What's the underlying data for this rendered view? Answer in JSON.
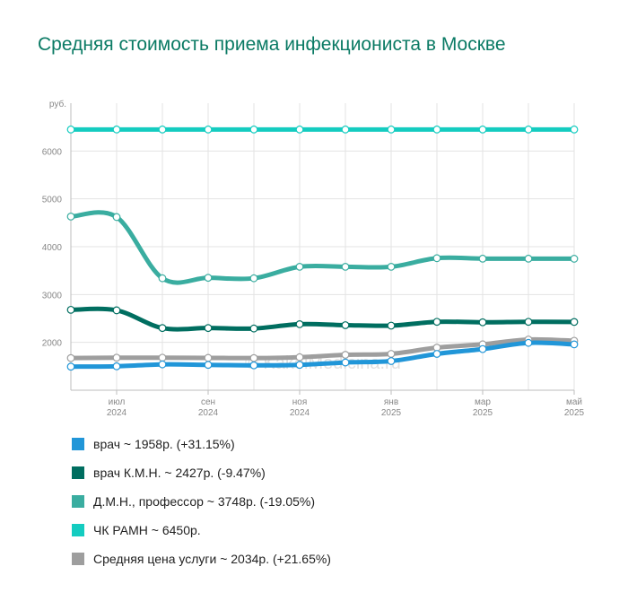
{
  "title": "Средняя стоимость приема инфекциониста в Москве",
  "watermark": "© KakoiMedicina.ru",
  "chart_data": {
    "type": "line",
    "y_unit": "руб.",
    "ylim": [
      1000,
      7000
    ],
    "y_ticks": [
      "2000",
      "3000",
      "4000",
      "5000",
      "6000"
    ],
    "x": [
      "2024-06",
      "2024-07",
      "2024-08",
      "2024-09",
      "2024-10",
      "2024-11",
      "2024-12",
      "2025-01",
      "2025-02",
      "2025-03",
      "2025-04",
      "2025-05"
    ],
    "x_ticks": [
      {
        "month": "июл",
        "year": "2024",
        "x": "2024-07"
      },
      {
        "month": "сен",
        "year": "2024",
        "x": "2024-09"
      },
      {
        "month": "ноя",
        "year": "2024",
        "x": "2024-11"
      },
      {
        "month": "янв",
        "year": "2025",
        "x": "2025-01"
      },
      {
        "month": "мар",
        "year": "2025",
        "x": "2025-03"
      },
      {
        "month": "май",
        "year": "2025",
        "x": "2025-05"
      }
    ],
    "grid": true,
    "legend_position": "bottom",
    "series": [
      {
        "name": "Средняя цена услуги",
        "color": "#9e9e9e",
        "legend": "Средняя цена услуги ~ 2034р. (+21.65%)",
        "values": [
          1672,
          1680,
          1680,
          1676,
          1672,
          1690,
          1740,
          1760,
          1890,
          1960,
          2060,
          2034
        ]
      },
      {
        "name": "врач",
        "color": "#2196d8",
        "legend": "врач ~ 1958р. (+31.15%)",
        "values": [
          1493,
          1500,
          1540,
          1530,
          1520,
          1530,
          1580,
          1610,
          1760,
          1860,
          1990,
          1958
        ]
      },
      {
        "name": "врач К.М.Н.",
        "color": "#006e60",
        "legend": "врач К.М.Н. ~ 2427р. (-9.47%)",
        "values": [
          2681,
          2670,
          2300,
          2300,
          2290,
          2380,
          2360,
          2350,
          2430,
          2420,
          2430,
          2427
        ]
      },
      {
        "name": "Д.М.Н., профессор",
        "color": "#3aada0",
        "legend": "Д.М.Н., профессор ~ 3748р. (-19.05%)",
        "values": [
          4630,
          4620,
          3340,
          3350,
          3340,
          3580,
          3580,
          3580,
          3760,
          3750,
          3750,
          3748
        ]
      },
      {
        "name": "ЧК РАМН",
        "color": "#14ccc0",
        "legend": "ЧК РАМН ~ 6450р.",
        "values": [
          6450,
          6450,
          6450,
          6450,
          6450,
          6450,
          6450,
          6450,
          6450,
          6450,
          6450,
          6450
        ]
      }
    ]
  }
}
